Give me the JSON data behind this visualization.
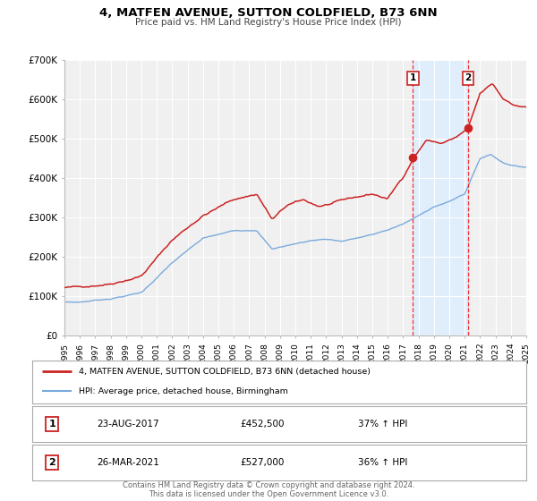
{
  "title": "4, MATFEN AVENUE, SUTTON COLDFIELD, B73 6NN",
  "subtitle": "Price paid vs. HM Land Registry's House Price Index (HPI)",
  "background_color": "#ffffff",
  "plot_bg_color": "#f0f0f0",
  "grid_color": "#ffffff",
  "hpi_color": "#7aaadd",
  "price_color": "#cc2222",
  "marker_color": "#cc2222",
  "shade_color": "#ddeeff",
  "sale1_date": 2017.645,
  "sale1_price": 452500,
  "sale1_label": "1",
  "sale1_text": "23-AUG-2017",
  "sale1_amount": "£452,500",
  "sale1_hpi": "37% ↑ HPI",
  "sale2_date": 2021.23,
  "sale2_price": 527000,
  "sale2_label": "2",
  "sale2_text": "26-MAR-2021",
  "sale2_amount": "£527,000",
  "sale2_hpi": "36% ↑ HPI",
  "legend_line1": "4, MATFEN AVENUE, SUTTON COLDFIELD, B73 6NN (detached house)",
  "legend_line2": "HPI: Average price, detached house, Birmingham",
  "footer1": "Contains HM Land Registry data © Crown copyright and database right 2024.",
  "footer2": "This data is licensed under the Open Government Licence v3.0.",
  "ylim": [
    0,
    700000
  ],
  "xlim": [
    1995,
    2025
  ],
  "yticks": [
    0,
    100000,
    200000,
    300000,
    400000,
    500000,
    600000,
    700000
  ],
  "ytick_labels": [
    "£0",
    "£100K",
    "£200K",
    "£300K",
    "£400K",
    "£500K",
    "£600K",
    "£700K"
  ]
}
